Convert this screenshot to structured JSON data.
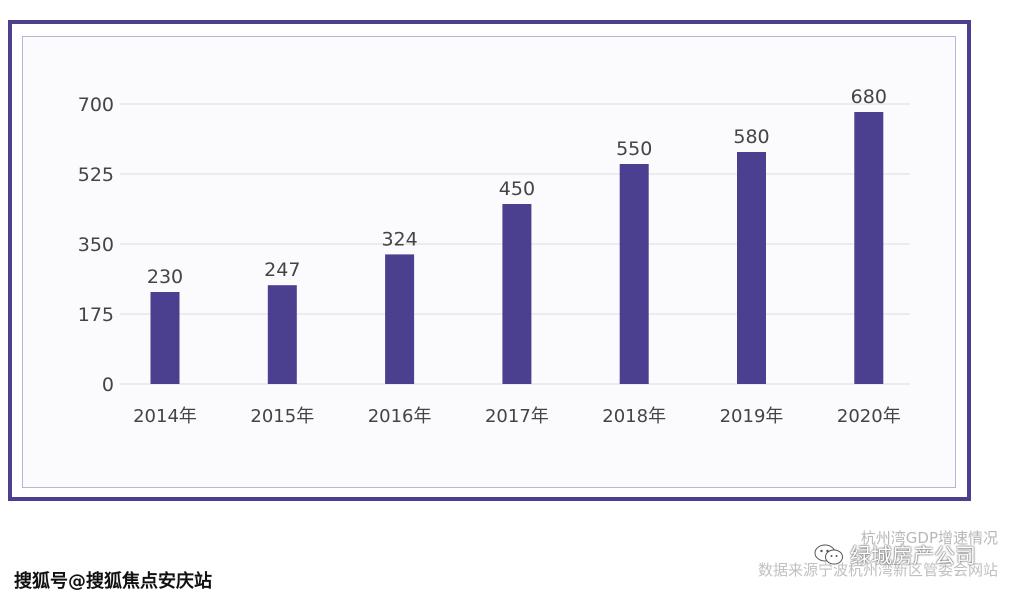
{
  "chart_data": {
    "type": "bar",
    "categories": [
      "2014年",
      "2015年",
      "2016年",
      "2017年",
      "2018年",
      "2019年",
      "2020年"
    ],
    "values": [
      230,
      247,
      324,
      450,
      550,
      580,
      680
    ],
    "data_labels": [
      "230",
      "247",
      "324",
      "450",
      "550",
      "580",
      "680"
    ],
    "ylim": [
      0,
      700
    ],
    "yticks": [
      0,
      175,
      350,
      525,
      700
    ],
    "ytick_labels": [
      "0",
      "175",
      "350",
      "525",
      "700"
    ],
    "grid": true,
    "bar_color": "#4b3f8f",
    "title": "",
    "xlabel": "",
    "ylabel": ""
  },
  "colors": {
    "frame": "#4b3f8f",
    "inner_border": "#b9b4d6",
    "grid": "#e3e3e8",
    "text": "#444444"
  },
  "captions": {
    "source_title": "杭州湾GDP增速情况",
    "source_line": "数据来源宁波杭州湾新区管委会网站",
    "wechat_name": "绿城房产公司",
    "watermark": "搜狐号@搜狐焦点安庆站"
  },
  "icons": {
    "wechat": "wechat-icon"
  }
}
